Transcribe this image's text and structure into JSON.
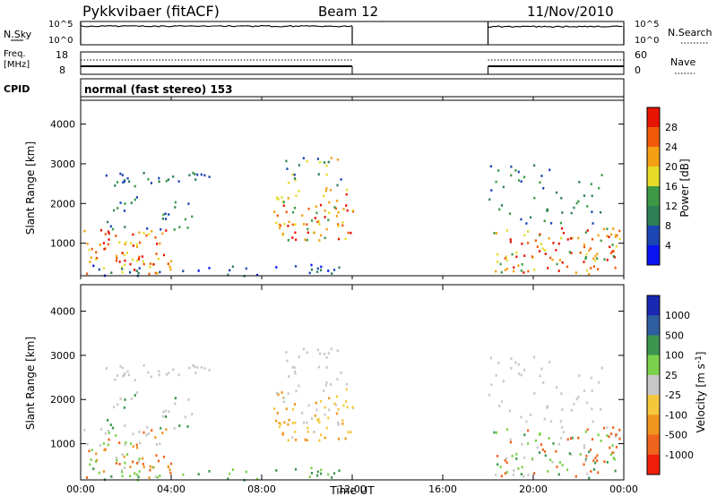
{
  "header": {
    "radar": "Pykkvibaer (fitACF)",
    "beam": "Beam 12",
    "date": "11/Nov/2010"
  },
  "colors": {
    "power": [
      "#0a14f0",
      "#1b46b4",
      "#2e7f55",
      "#3c9a46",
      "#e6dc28",
      "#f5a014",
      "#f05a0a",
      "#e61400"
    ],
    "velocity": [
      "#f01e0a",
      "#f0641e",
      "#f0961e",
      "#f5c83c",
      "#c8c8c8",
      "#7cd24a",
      "#3c9650",
      "#2e5fa0",
      "#1a28b4"
    ],
    "line": "#000000"
  },
  "chart_data": [
    {
      "type": "line",
      "panel": "noise",
      "ylabel_left": "N.Sky",
      "ylabel_right": "N.Search",
      "ytick_labels": [
        "10^5",
        "10^0"
      ],
      "xlim": [
        "00:00",
        "24:00"
      ],
      "segments": [
        {
          "start": "00:00",
          "end": "12:00",
          "level_fraction": 0.8
        },
        {
          "start": "18:00",
          "end": "24:00",
          "level_fraction": 0.78
        }
      ]
    },
    {
      "type": "line",
      "panel": "frequency",
      "ylabel_left": "Freq.",
      "ylabel_left_unit": "[MHz]",
      "yticks_left": [
        8,
        18
      ],
      "ylabel_right": "Nave",
      "yticks_right": [
        0,
        60
      ],
      "segments": [
        {
          "start": "00:00",
          "end": "12:00"
        },
        {
          "start": "18:00",
          "end": "24:00"
        }
      ]
    },
    {
      "type": "table",
      "panel": "cpid",
      "label": "CPID",
      "text": "normal (fast stereo) 153"
    },
    {
      "type": "heatmap",
      "panel": "power",
      "ylabel": "Slant Range [km]",
      "ylim": [
        180,
        4600
      ],
      "yticks": [
        1000,
        2000,
        3000,
        4000
      ],
      "xlim": [
        "00:00",
        "24:00"
      ],
      "colorbar_label": "Power [dB]",
      "colorbar_ticks": [
        "4",
        "8",
        "12",
        "16",
        "20",
        "24",
        "28"
      ],
      "data_gaps": [
        [
          "12:00",
          "18:00"
        ]
      ]
    },
    {
      "type": "heatmap",
      "panel": "velocity",
      "ylabel": "Slant Range [km]",
      "ylim": [
        180,
        4600
      ],
      "yticks": [
        1000,
        2000,
        3000,
        4000
      ],
      "xlabel": "Time UT",
      "xticks": [
        "00:00",
        "04:00",
        "08:00",
        "12:00",
        "16:00",
        "20:00",
        "00:00"
      ],
      "colorbar_label": "Velocity [m s",
      "colorbar_label_sup": "-1",
      "colorbar_label_end": "]",
      "colorbar_ticks": [
        "1000",
        "500",
        "100",
        "25",
        "-25",
        "-100",
        "-500",
        "-1000"
      ],
      "data_gaps": [
        [
          "12:00",
          "18:00"
        ]
      ]
    }
  ]
}
